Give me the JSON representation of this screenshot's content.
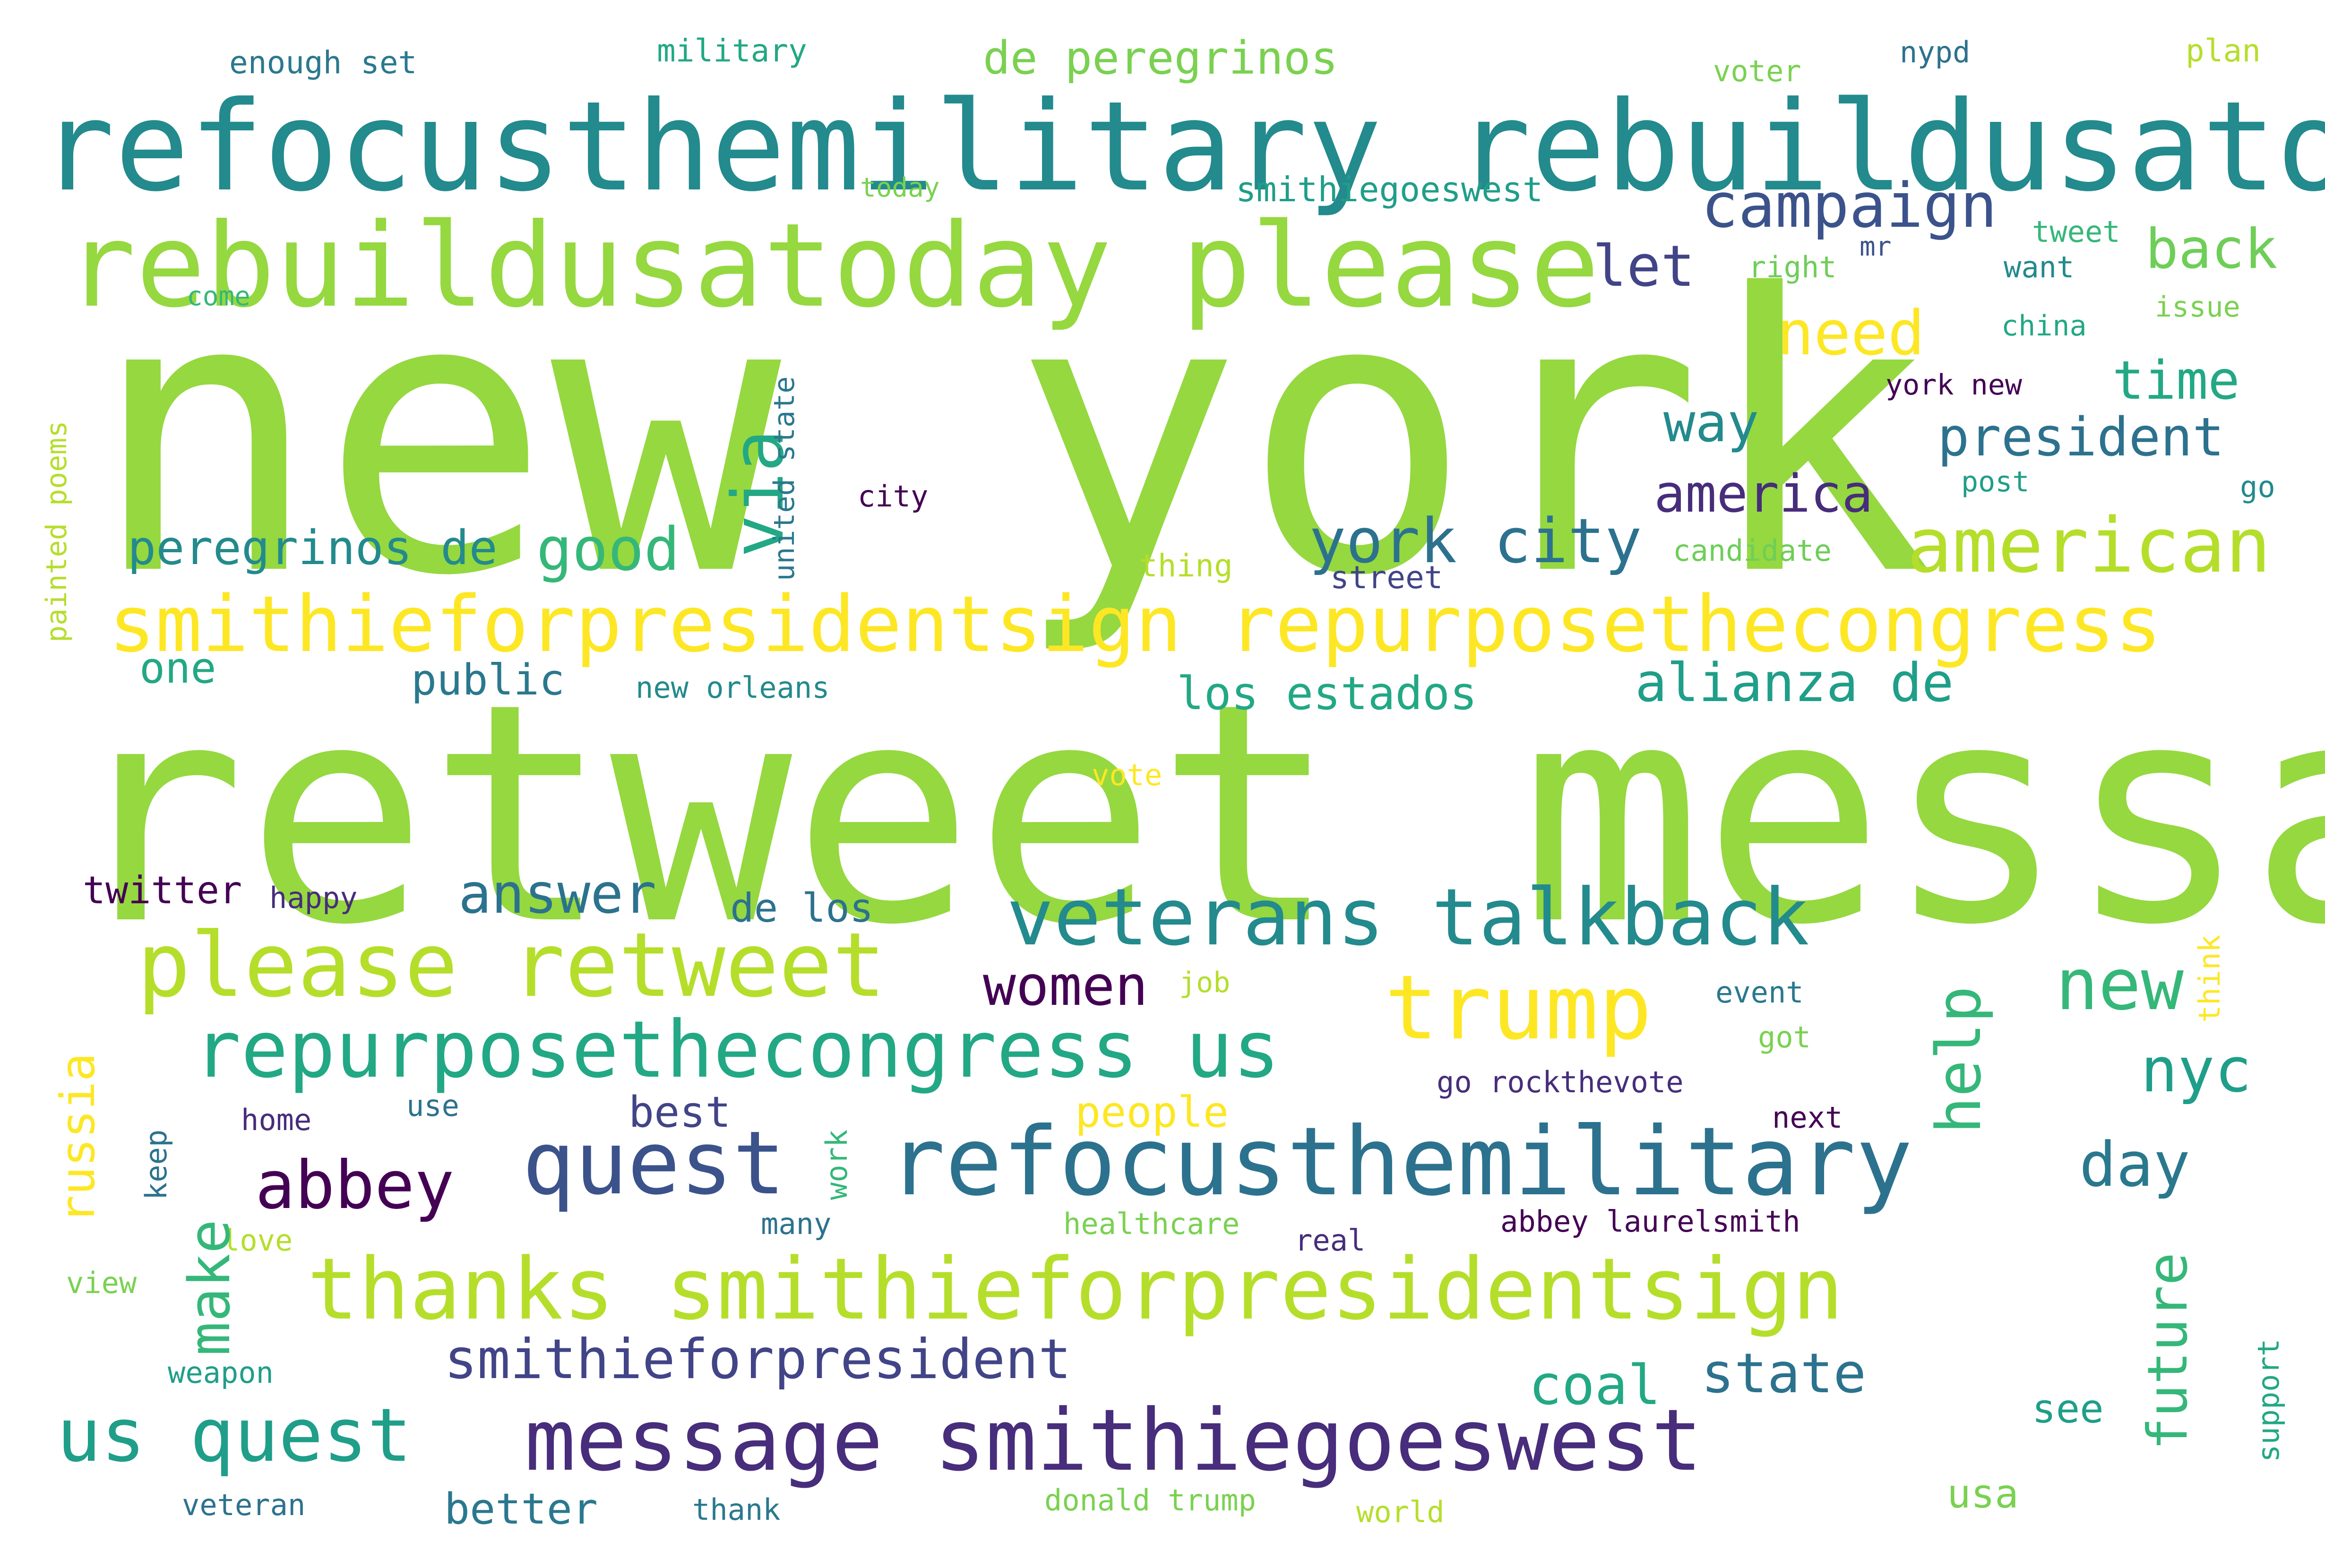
{
  "palette": {
    "background": "#ffffff",
    "c1": "#95d840",
    "c2": "#238a8d",
    "c3": "#b5de2b",
    "c4": "#fde725",
    "c5": "#3b528b",
    "c6": "#440154",
    "c7": "#22a884",
    "c8": "#1f9e89",
    "c9": "#2c728e",
    "c10": "#472d7b",
    "c11": "#7ad151",
    "c12": "#35b779",
    "c13": "#2a788e",
    "c14": "#414487",
    "c15": "#6ece58"
  },
  "words": [
    "new york",
    "retweet message",
    "refocusthemilitary rebuildusatoday",
    "rebuildusatoday please",
    "smithieforpresidentsign repurposethecongress",
    "please retweet",
    "veterans talkback",
    "trump",
    "repurposethecongress us",
    "quest",
    "refocusthemilitary",
    "abbey",
    "thanks smithieforpresidentsign",
    "us quest",
    "message smithiegoeswest",
    "smithieforpresident",
    "enough set",
    "military",
    "de peregrinos",
    "voter",
    "nypd",
    "plan",
    "today",
    "smithiegoeswest",
    "campaign",
    "let",
    "tweet",
    "right",
    "mr",
    "want",
    "back",
    "come",
    "need",
    "china",
    "issue",
    "via",
    "united state",
    "time",
    "way",
    "president",
    "york new",
    "painted poems",
    "america",
    "city",
    "post",
    "go",
    "peregrinos de",
    "good",
    "york city",
    "american",
    "thing",
    "street",
    "candidate",
    "one",
    "public",
    "new orleans",
    "los estados",
    "alianza de",
    "vote",
    "twitter",
    "happy",
    "answer",
    "de los",
    "women",
    "new",
    "help",
    "job",
    "event",
    "think",
    "russia",
    "people",
    "go rockthevote",
    "got",
    "nyc",
    "home",
    "use",
    "best",
    "next",
    "keep",
    "work",
    "day",
    "love",
    "many",
    "healthcare",
    "real",
    "abbey laurelsmith",
    "make",
    "view",
    "future",
    "weapon",
    "coal",
    "state",
    "see",
    "support",
    "veteran",
    "better",
    "thank",
    "donald trump",
    "world",
    "usa"
  ]
}
